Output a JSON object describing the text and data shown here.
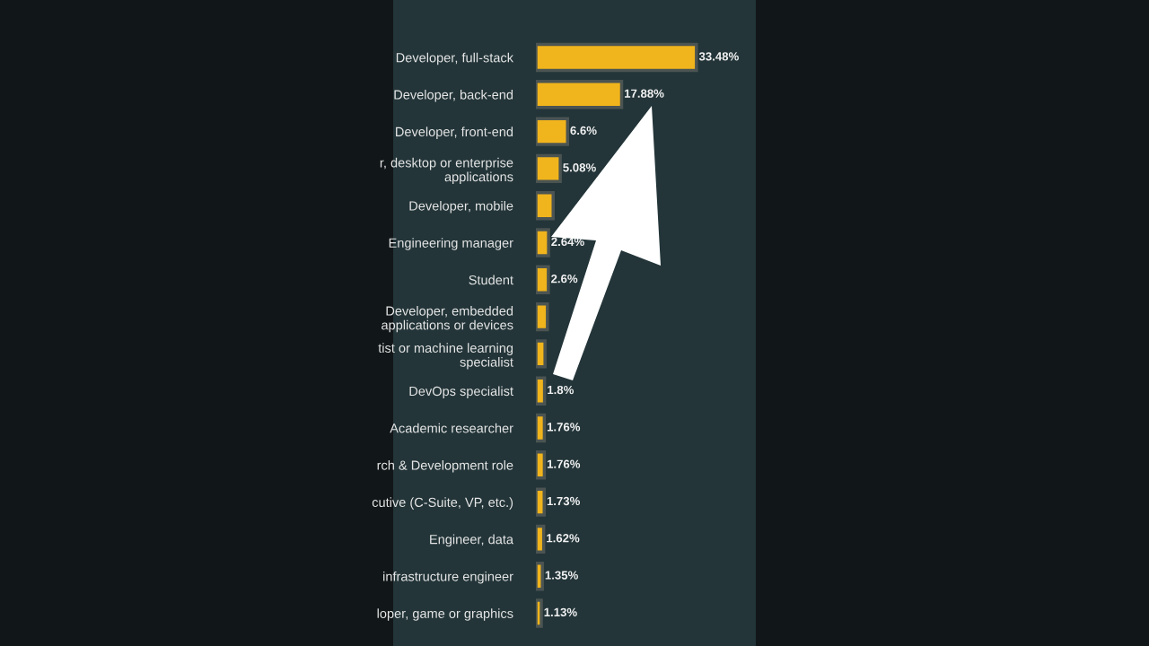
{
  "chart_data": {
    "type": "bar",
    "orientation": "horizontal",
    "categories": [
      "Developer, full-stack",
      "Developer, back-end",
      "Developer, front-end",
      "r, desktop or enterprise\napplications",
      "Developer, mobile",
      "Engineering manager",
      "Student",
      "Developer, embedded\napplications or devices",
      "tist or machine learning\nspecialist",
      "DevOps specialist",
      "Academic researcher",
      "rch & Development role",
      "cutive (C-Suite, VP, etc.)",
      "Engineer, data",
      "infrastructure engineer",
      "loper, game or graphics"
    ],
    "values": [
      33.48,
      17.88,
      6.6,
      5.08,
      3.6,
      2.64,
      2.6,
      2.4,
      1.9,
      1.8,
      1.76,
      1.76,
      1.73,
      1.62,
      1.35,
      1.13
    ],
    "value_labels": [
      "33.48%",
      "17.88%",
      "6.6%",
      "5.08%",
      null,
      "2.64%",
      "2.6%",
      null,
      null,
      "1.8%",
      "1.76%",
      "1.76%",
      "1.73%",
      "1.62%",
      "1.35%",
      "1.13%"
    ],
    "color": "#f0b41c"
  }
}
